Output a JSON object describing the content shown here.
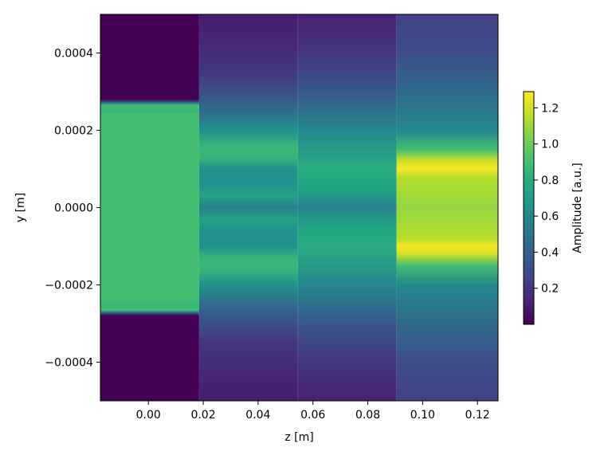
{
  "chart_data": {
    "type": "heatmap",
    "title": "",
    "xlabel": "z [m]",
    "ylabel": "y [m]",
    "xlim": [
      -0.0175,
      0.1275
    ],
    "ylim": [
      -0.0005,
      0.0005
    ],
    "x_ticks": [
      {
        "value": 0.0,
        "label": "0.00"
      },
      {
        "value": 0.02,
        "label": "0.02"
      },
      {
        "value": 0.04,
        "label": "0.04"
      },
      {
        "value": 0.06,
        "label": "0.06"
      },
      {
        "value": 0.08,
        "label": "0.08"
      },
      {
        "value": 0.1,
        "label": "0.10"
      },
      {
        "value": 0.12,
        "label": "0.12"
      }
    ],
    "y_ticks": [
      {
        "value": 0.0004,
        "label": "0.0004"
      },
      {
        "value": 0.0002,
        "label": "0.0002"
      },
      {
        "value": 0.0,
        "label": "0.0000"
      },
      {
        "value": -0.0002,
        "label": "−0.0002"
      },
      {
        "value": -0.0004,
        "label": "−0.0004"
      }
    ],
    "colormap": "viridis",
    "colorbar": {
      "label": "Amplitude [a.u.]",
      "range": [
        0.0,
        1.29
      ],
      "ticks": [
        {
          "value": 0.2,
          "label": "0.2"
        },
        {
          "value": 0.4,
          "label": "0.4"
        },
        {
          "value": 0.6,
          "label": "0.6"
        },
        {
          "value": 0.8,
          "label": "0.8"
        },
        {
          "value": 1.0,
          "label": "1.0"
        },
        {
          "value": 1.2,
          "label": "1.2"
        }
      ]
    },
    "columns": [
      {
        "z_range": [
          -0.0175,
          0.0185
        ],
        "profile": [
          {
            "y": -0.0005,
            "v": 0.0
          },
          {
            "y": -0.00028,
            "v": 0.0
          },
          {
            "y": -0.00027,
            "v": 0.55
          },
          {
            "y": -0.000265,
            "v": 0.9
          },
          {
            "y": -0.00025,
            "v": 0.85
          },
          {
            "y": -0.00024,
            "v": 0.9
          },
          {
            "y": 0.00024,
            "v": 0.9
          },
          {
            "y": 0.00025,
            "v": 0.85
          },
          {
            "y": 0.000265,
            "v": 0.9
          },
          {
            "y": 0.00027,
            "v": 0.55
          },
          {
            "y": 0.00028,
            "v": 0.0
          },
          {
            "y": 0.0005,
            "v": 0.0
          }
        ]
      },
      {
        "z_range": [
          0.0185,
          0.0545
        ],
        "profile": [
          {
            "y": -0.0005,
            "v": 0.1
          },
          {
            "y": -0.00035,
            "v": 0.2
          },
          {
            "y": -0.00025,
            "v": 0.45
          },
          {
            "y": -0.0002,
            "v": 0.65
          },
          {
            "y": -0.00016,
            "v": 0.85
          },
          {
            "y": -0.00013,
            "v": 0.85
          },
          {
            "y": -0.0001,
            "v": 0.65
          },
          {
            "y": -6e-05,
            "v": 0.65
          },
          {
            "y": -3e-05,
            "v": 0.75
          },
          {
            "y": 0.0,
            "v": 0.55
          },
          {
            "y": 3e-05,
            "v": 0.75
          },
          {
            "y": 6e-05,
            "v": 0.65
          },
          {
            "y": 0.0001,
            "v": 0.65
          },
          {
            "y": 0.00013,
            "v": 0.85
          },
          {
            "y": 0.00016,
            "v": 0.85
          },
          {
            "y": 0.0002,
            "v": 0.65
          },
          {
            "y": 0.00025,
            "v": 0.45
          },
          {
            "y": 0.00035,
            "v": 0.2
          },
          {
            "y": 0.0005,
            "v": 0.1
          }
        ]
      },
      {
        "z_range": [
          0.0545,
          0.0905
        ],
        "profile": [
          {
            "y": -0.0005,
            "v": 0.12
          },
          {
            "y": -0.0004,
            "v": 0.2
          },
          {
            "y": -0.0003,
            "v": 0.35
          },
          {
            "y": -0.0002,
            "v": 0.6
          },
          {
            "y": -0.0001,
            "v": 0.8
          },
          {
            "y": -5e-05,
            "v": 0.75
          },
          {
            "y": 0.0,
            "v": 0.58
          },
          {
            "y": 5e-05,
            "v": 0.75
          },
          {
            "y": 0.0001,
            "v": 0.8
          },
          {
            "y": 0.0002,
            "v": 0.6
          },
          {
            "y": 0.0003,
            "v": 0.35
          },
          {
            "y": 0.0004,
            "v": 0.2
          },
          {
            "y": 0.0005,
            "v": 0.12
          }
        ]
      },
      {
        "z_range": [
          0.0905,
          0.1275
        ],
        "profile": [
          {
            "y": -0.0005,
            "v": 0.25
          },
          {
            "y": -0.0004,
            "v": 0.3
          },
          {
            "y": -0.0003,
            "v": 0.45
          },
          {
            "y": -0.0002,
            "v": 0.6
          },
          {
            "y": -0.00015,
            "v": 0.9
          },
          {
            "y": -0.00012,
            "v": 1.2
          },
          {
            "y": -0.0001,
            "v": 1.28
          },
          {
            "y": -8e-05,
            "v": 1.15
          },
          {
            "y": 0.0,
            "v": 1.08
          },
          {
            "y": 8e-05,
            "v": 1.15
          },
          {
            "y": 0.0001,
            "v": 1.28
          },
          {
            "y": 0.00012,
            "v": 1.2
          },
          {
            "y": 0.00015,
            "v": 0.9
          },
          {
            "y": 0.0002,
            "v": 0.6
          },
          {
            "y": 0.0003,
            "v": 0.45
          },
          {
            "y": 0.0004,
            "v": 0.3
          },
          {
            "y": 0.0005,
            "v": 0.25
          }
        ]
      }
    ]
  }
}
